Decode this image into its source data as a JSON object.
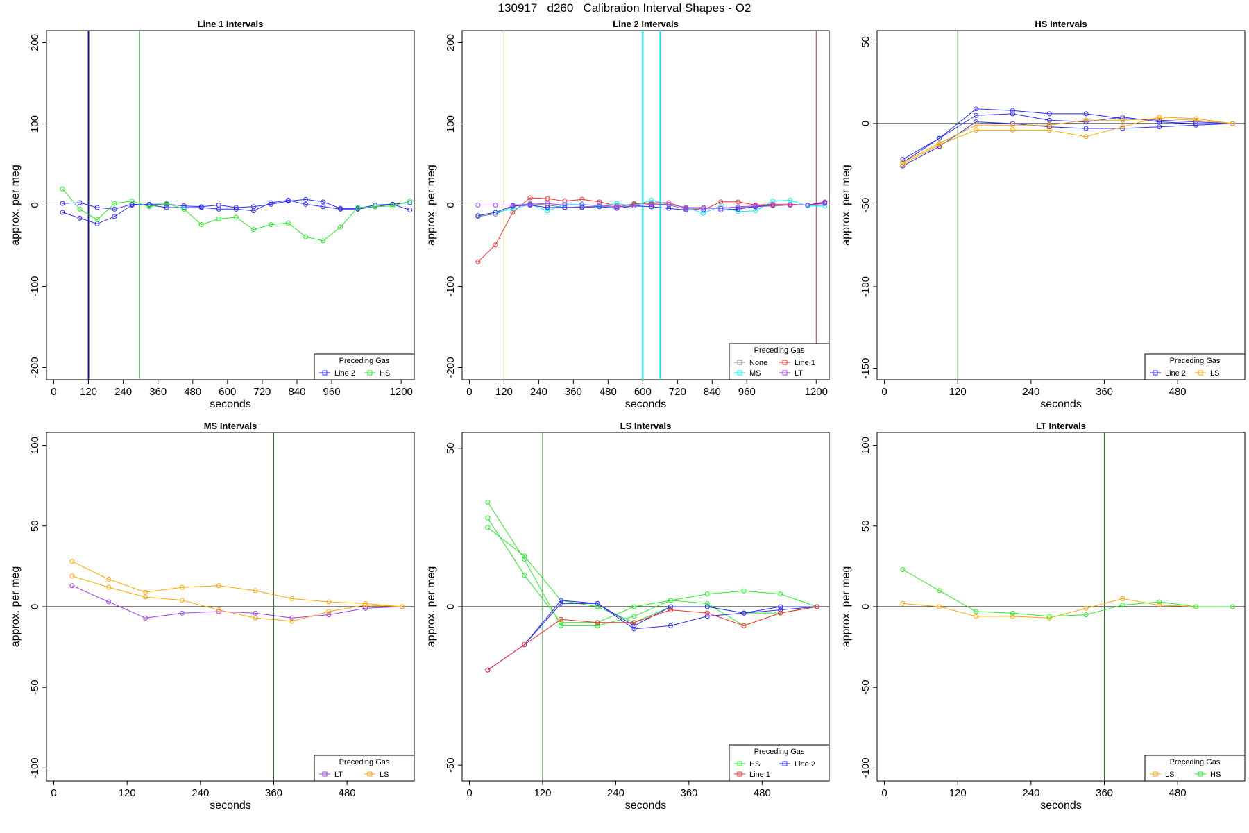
{
  "figure_title": "130917   d260   Calibration Interval Shapes - O2",
  "colors": {
    "Line 1": "#ff2a2a",
    "Line 2": "#2a2aff",
    "HS": "#22ee22",
    "MS": "#00f0f0",
    "LS": "#ffa500",
    "LT": "#a040f0",
    "None": "#808080"
  },
  "chart_data": [
    {
      "type": "line",
      "title": "Line 1 Intervals",
      "xlabel": "seconds",
      "ylabel": "approx. per meg",
      "xlim": [
        -25,
        1245
      ],
      "ylim": [
        -215,
        215
      ],
      "xticks": [
        0,
        120,
        240,
        360,
        480,
        600,
        720,
        840,
        960,
        1200
      ],
      "yticks": [
        -200,
        -100,
        0,
        100,
        200
      ],
      "vlines": [
        {
          "x": 120,
          "color": "#1a1a99",
          "width": 2
        },
        {
          "x": 297,
          "color": "#22ee22",
          "width": 1
        }
      ],
      "legend": {
        "title": "Preceding Gas",
        "entries": [
          "Line 2",
          "HS"
        ],
        "cols": 2
      },
      "series": [
        {
          "name": "Line 2",
          "x": [
            30,
            90,
            150,
            210,
            270,
            330,
            390,
            450,
            510,
            570,
            630,
            690,
            750,
            810,
            870,
            930,
            990,
            1050,
            1110,
            1170,
            1230
          ],
          "values": [
            2,
            3,
            -3,
            -5,
            1,
            0,
            -3,
            -3,
            -3,
            -5,
            -5,
            -7,
            3,
            6,
            1,
            -2,
            -5,
            -5,
            -2,
            1,
            3
          ]
        },
        {
          "name": "Line 2",
          "x": [
            30,
            90,
            150,
            210,
            270,
            330,
            390,
            450,
            510,
            570,
            630,
            690,
            750,
            810,
            870,
            930,
            990,
            1050,
            1110,
            1170,
            1230
          ],
          "values": [
            -9,
            -16,
            -23,
            -14,
            0,
            1,
            1,
            -1,
            -2,
            0,
            -3,
            -2,
            1,
            5,
            7,
            4,
            -4,
            -4,
            0,
            1,
            -6
          ]
        },
        {
          "name": "HS",
          "x": [
            30,
            90,
            150,
            210,
            270,
            330,
            390,
            450,
            510,
            570,
            630,
            690,
            750,
            810,
            870,
            930,
            990,
            1050,
            1110,
            1170,
            1230
          ],
          "values": [
            20,
            -5,
            -18,
            2,
            5,
            -2,
            2,
            -5,
            -24,
            -17,
            -15,
            -30,
            -24,
            -22,
            -39,
            -44,
            -27,
            -3,
            -2,
            -1,
            5
          ]
        }
      ]
    },
    {
      "type": "line",
      "title": "Line 2 Intervals",
      "xlabel": "seconds",
      "ylabel": "approx. per meg",
      "xlim": [
        -25,
        1245
      ],
      "ylim": [
        -215,
        215
      ],
      "xticks": [
        0,
        120,
        240,
        360,
        480,
        600,
        720,
        840,
        960,
        1200
      ],
      "yticks": [
        -200,
        -100,
        0,
        100,
        200
      ],
      "vlines": [
        {
          "x": 120,
          "color": "#6b5a00",
          "width": 1
        },
        {
          "x": 600,
          "color": "#00f0f0",
          "width": 2
        },
        {
          "x": 660,
          "color": "#00f0f0",
          "width": 2
        },
        {
          "x": 1200,
          "color": "#d11a5a",
          "width": 1
        }
      ],
      "legend": {
        "title": "Preceding Gas",
        "entries": [
          "None",
          "Line 1",
          "MS",
          "LT"
        ],
        "cols": 2
      },
      "series": [
        {
          "name": "None",
          "x": [
            30,
            90,
            150,
            210,
            270,
            330,
            390,
            450,
            510,
            570,
            630,
            690,
            750,
            810,
            870,
            930,
            990,
            1050,
            1110,
            1170,
            1230
          ],
          "values": [
            -14,
            -11,
            -2,
            2,
            0,
            -3,
            -2,
            -1,
            -3,
            2,
            2,
            0,
            -5,
            -4,
            -4,
            -3,
            -2,
            -1,
            0,
            0,
            3
          ]
        },
        {
          "name": "Line 1",
          "x": [
            30,
            90,
            150,
            210,
            270,
            330,
            390,
            450,
            510,
            570,
            630,
            690,
            750,
            810,
            870,
            930,
            990,
            1050,
            1110,
            1170,
            1230
          ],
          "values": [
            -70,
            -49,
            -9,
            9,
            8,
            5,
            7,
            4,
            -1,
            1,
            3,
            3,
            -4,
            -6,
            4,
            4,
            0,
            1,
            1,
            0,
            4
          ]
        },
        {
          "name": "MS",
          "x": [
            30,
            90,
            150,
            210,
            270,
            330,
            390,
            450,
            510,
            570,
            630,
            690,
            750,
            810,
            870,
            930,
            990,
            1050,
            1110,
            1170,
            1230
          ],
          "values": [
            -13,
            -9,
            -5,
            1,
            -7,
            1,
            1,
            -1,
            2,
            -1,
            6,
            1,
            -3,
            -10,
            -1,
            -8,
            -7,
            5,
            6,
            -1,
            -1
          ]
        },
        {
          "name": "Line 2",
          "x": [
            30,
            90,
            150,
            210,
            270,
            330,
            390,
            450,
            510,
            570,
            630,
            690,
            750,
            810,
            870,
            930,
            990,
            1050,
            1110,
            1170,
            1230
          ],
          "values": [
            -13,
            -9,
            -1,
            0,
            -3,
            -3,
            -3,
            -2,
            -4,
            -1,
            -2,
            -4,
            -6,
            -6,
            -6,
            -5,
            -2,
            0,
            0,
            0,
            3
          ]
        },
        {
          "name": "LT",
          "x": [
            30,
            90,
            150,
            210,
            270,
            330,
            390,
            450,
            510,
            570,
            630,
            690,
            750,
            810,
            870,
            930,
            990,
            1050,
            1110,
            1170,
            1230
          ],
          "values": [
            0,
            0,
            0,
            1,
            2,
            0,
            0,
            0,
            -2,
            -1,
            1,
            1,
            -3,
            -3,
            -4,
            -2,
            -1,
            0,
            0,
            0,
            2
          ]
        }
      ]
    },
    {
      "type": "line",
      "title": "HS Intervals",
      "xlabel": "seconds",
      "ylabel": "approx. per meg",
      "xlim": [
        -12,
        590
      ],
      "ylim": [
        -157,
        57
      ],
      "xticks": [
        0,
        120,
        240,
        360,
        480
      ],
      "yticks": [
        -150,
        -100,
        -50,
        0,
        50
      ],
      "vlines": [
        {
          "x": 120,
          "color": "#1f7a1f",
          "width": 1
        }
      ],
      "legend": {
        "title": "Preceding Gas",
        "entries": [
          "Line 2",
          "LS"
        ],
        "cols": 2
      },
      "series": [
        {
          "name": "Line 2",
          "x": [
            30,
            90,
            150,
            210,
            270,
            330,
            390,
            450,
            510,
            570
          ],
          "values": [
            -22,
            -9,
            9,
            8,
            6,
            6,
            3,
            2,
            1,
            0
          ]
        },
        {
          "name": "Line 2",
          "x": [
            30,
            90,
            150,
            210,
            270,
            330,
            390,
            450,
            510,
            570
          ],
          "values": [
            -24,
            -9,
            5,
            6,
            2,
            1,
            4,
            1,
            0,
            0
          ]
        },
        {
          "name": "Line 2",
          "x": [
            30,
            90,
            150,
            210,
            270,
            330,
            390,
            450,
            510,
            570
          ],
          "values": [
            -26,
            -14,
            1,
            0,
            -2,
            -3,
            -3,
            -2,
            -1,
            0
          ]
        },
        {
          "name": "LS",
          "x": [
            30,
            90,
            150,
            210,
            270,
            330,
            390,
            450,
            510,
            570
          ],
          "values": [
            -24,
            -12,
            -1,
            -1,
            -1,
            2,
            2,
            3,
            2,
            0
          ]
        },
        {
          "name": "LS",
          "x": [
            30,
            90,
            150,
            210,
            270,
            330,
            390,
            450,
            510,
            570
          ],
          "values": [
            -25,
            -13,
            -4,
            -4,
            -4,
            -8,
            -2,
            4,
            3,
            0
          ]
        }
      ]
    },
    {
      "type": "line",
      "title": "MS Intervals",
      "xlabel": "seconds",
      "ylabel": "approx. per meg",
      "xlim": [
        -12,
        590
      ],
      "ylim": [
        -108,
        108
      ],
      "xticks": [
        0,
        120,
        240,
        360,
        480
      ],
      "yticks": [
        -100,
        -50,
        0,
        50,
        100
      ],
      "vlines": [
        {
          "x": 360,
          "color": "#1f7a1f",
          "width": 1
        }
      ],
      "legend": {
        "title": "Preceding Gas",
        "entries": [
          "LT",
          "LS"
        ],
        "cols": 2
      },
      "series": [
        {
          "name": "LT",
          "x": [
            30,
            90,
            150,
            210,
            270,
            330,
            390,
            450,
            510,
            570
          ],
          "values": [
            13,
            3,
            -7,
            -4,
            -3,
            -4,
            -7,
            -5,
            -1,
            0
          ]
        },
        {
          "name": "LS",
          "x": [
            30,
            90,
            150,
            210,
            270,
            330,
            390,
            450,
            510,
            570
          ],
          "values": [
            28,
            17,
            9,
            12,
            13,
            10,
            5,
            3,
            2,
            0
          ]
        },
        {
          "name": "LS",
          "x": [
            30,
            90,
            150,
            210,
            270,
            330,
            390,
            450,
            510,
            570
          ],
          "values": [
            19,
            12,
            6,
            4,
            -2,
            -7,
            -9,
            -3,
            1,
            0
          ]
        }
      ]
    },
    {
      "type": "line",
      "title": "LS Intervals",
      "xlabel": "seconds",
      "ylabel": "approx. per meg",
      "xlim": [
        -12,
        590
      ],
      "ylim": [
        -55,
        55
      ],
      "xticks": [
        0,
        120,
        240,
        360,
        480
      ],
      "yticks": [
        -50,
        0,
        50
      ],
      "vlines": [
        {
          "x": 120,
          "color": "#1f7a1f",
          "width": 1
        }
      ],
      "legend": {
        "title": "Preceding Gas",
        "entries": [
          "HS",
          "Line 2",
          "Line 1"
        ],
        "cols": 2
      },
      "series": [
        {
          "name": "HS",
          "x": [
            30,
            90,
            150,
            210,
            270,
            330,
            390,
            450,
            510,
            570
          ],
          "values": [
            33,
            15,
            -6,
            -6,
            -3,
            2,
            1,
            -6,
            -2,
            0
          ]
        },
        {
          "name": "HS",
          "x": [
            30,
            90,
            150,
            210,
            270,
            330,
            390,
            450,
            510,
            570
          ],
          "values": [
            28,
            10,
            -5,
            -5,
            0,
            2,
            4,
            5,
            4,
            0
          ]
        },
        {
          "name": "HS",
          "x": [
            30,
            90,
            150,
            210,
            270,
            330,
            390,
            450,
            510,
            570
          ],
          "values": [
            25,
            16,
            2,
            0,
            -5,
            0,
            0,
            -2,
            -2,
            0
          ]
        },
        {
          "name": "Line 2",
          "x": [
            30,
            90,
            150,
            210,
            270,
            330,
            390,
            450,
            510,
            570
          ],
          "values": [
            -20,
            -12,
            2,
            1,
            -7,
            -6,
            -3,
            -2,
            0,
            0
          ]
        },
        {
          "name": "Line 2",
          "x": [
            30,
            90,
            150,
            210,
            270,
            330,
            390,
            450,
            510,
            570
          ],
          "values": [
            -20,
            -12,
            1,
            1,
            -6,
            0,
            0,
            -2,
            -1,
            0
          ]
        },
        {
          "name": "Line 1",
          "x": [
            30,
            90,
            150,
            210,
            270,
            330,
            390,
            450,
            510,
            570
          ],
          "values": [
            -20,
            -12,
            -4,
            -5,
            -5,
            -1,
            -2,
            -6,
            -2,
            0
          ]
        }
      ]
    },
    {
      "type": "line",
      "title": "LT Intervals",
      "xlabel": "seconds",
      "ylabel": "approx. per meg",
      "xlim": [
        -12,
        590
      ],
      "ylim": [
        -108,
        108
      ],
      "xticks": [
        0,
        120,
        240,
        360,
        480
      ],
      "yticks": [
        -100,
        -50,
        0,
        50,
        100
      ],
      "vlines": [
        {
          "x": 360,
          "color": "#1f7a1f",
          "width": 1
        }
      ],
      "legend": {
        "title": "Preceding Gas",
        "entries": [
          "LS",
          "HS"
        ],
        "cols": 2
      },
      "series": [
        {
          "name": "LS",
          "x": [
            30,
            90,
            150,
            210,
            270,
            330,
            390,
            450,
            510,
            570
          ],
          "values": [
            2,
            0,
            -6,
            -6,
            -7,
            -1,
            5,
            1,
            0,
            0
          ]
        },
        {
          "name": "HS",
          "x": [
            30,
            90,
            150,
            210,
            270,
            330,
            390,
            450,
            510,
            570
          ],
          "values": [
            23,
            10,
            -3,
            -4,
            -6,
            -5,
            1,
            3,
            0,
            0
          ]
        }
      ]
    }
  ]
}
